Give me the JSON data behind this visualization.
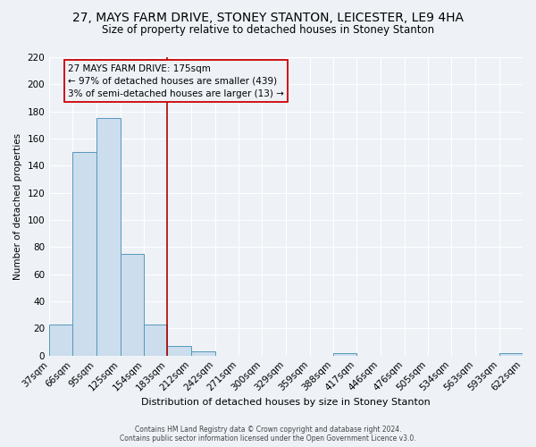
{
  "title": "27, MAYS FARM DRIVE, STONEY STANTON, LEICESTER, LE9 4HA",
  "subtitle": "Size of property relative to detached houses in Stoney Stanton",
  "xlabel": "Distribution of detached houses by size in Stoney Stanton",
  "ylabel": "Number of detached properties",
  "footer_line1": "Contains HM Land Registry data © Crown copyright and database right 2024.",
  "footer_line2": "Contains public sector information licensed under the Open Government Licence v3.0.",
  "bar_edges": [
    37,
    66,
    95,
    125,
    154,
    183,
    212,
    242,
    271,
    300,
    329,
    359,
    388,
    417,
    446,
    476,
    505,
    534,
    563,
    593,
    622
  ],
  "bar_heights": [
    23,
    150,
    175,
    75,
    23,
    7,
    3,
    0,
    0,
    0,
    0,
    0,
    2,
    0,
    0,
    0,
    0,
    0,
    0,
    2
  ],
  "red_line_x": 183,
  "annotation_title": "27 MAYS FARM DRIVE: 175sqm",
  "annotation_line2": "← 97% of detached houses are smaller (439)",
  "annotation_line3": "3% of semi-detached houses are larger (13) →",
  "bar_color": "#ccdded",
  "bar_edge_color": "#5599bb",
  "red_line_color": "#aa0000",
  "annotation_box_edge_color": "#cc0000",
  "ylim": [
    0,
    220
  ],
  "yticks": [
    0,
    20,
    40,
    60,
    80,
    100,
    120,
    140,
    160,
    180,
    200,
    220
  ],
  "bg_color": "#eef2f7",
  "grid_color": "#ffffff",
  "title_fontsize": 10,
  "subtitle_fontsize": 8.5,
  "annot_fontsize": 7.5,
  "axis_fontsize": 7.5,
  "ylabel_fontsize": 7.5,
  "xlabel_fontsize": 8,
  "footer_fontsize": 5.5
}
